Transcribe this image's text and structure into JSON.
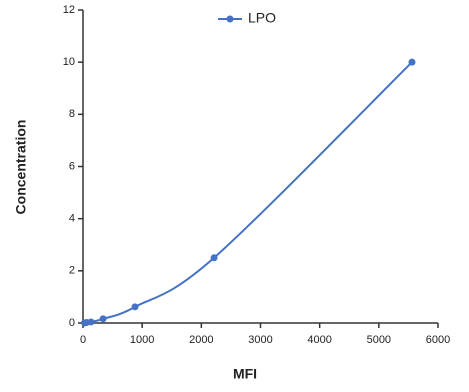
{
  "chart_data": {
    "type": "line",
    "x_label": "MFI",
    "y_label": "Concentration",
    "series": [
      {
        "name": "LPO",
        "color": "#4472c4",
        "x": [
          25,
          60,
          135,
          340,
          880,
          2215,
          5560
        ],
        "values": [
          0.005,
          0.02,
          0.04,
          0.16,
          0.62,
          2.5,
          10
        ]
      }
    ],
    "xlim": [
      0,
      6000
    ],
    "xticks": [
      0,
      1000,
      2000,
      3000,
      4000,
      5000,
      6000
    ],
    "ylim": [
      0,
      12
    ],
    "yticks": [
      0,
      2,
      4,
      6,
      8,
      10,
      12
    ],
    "grid": false,
    "legend": "top"
  }
}
